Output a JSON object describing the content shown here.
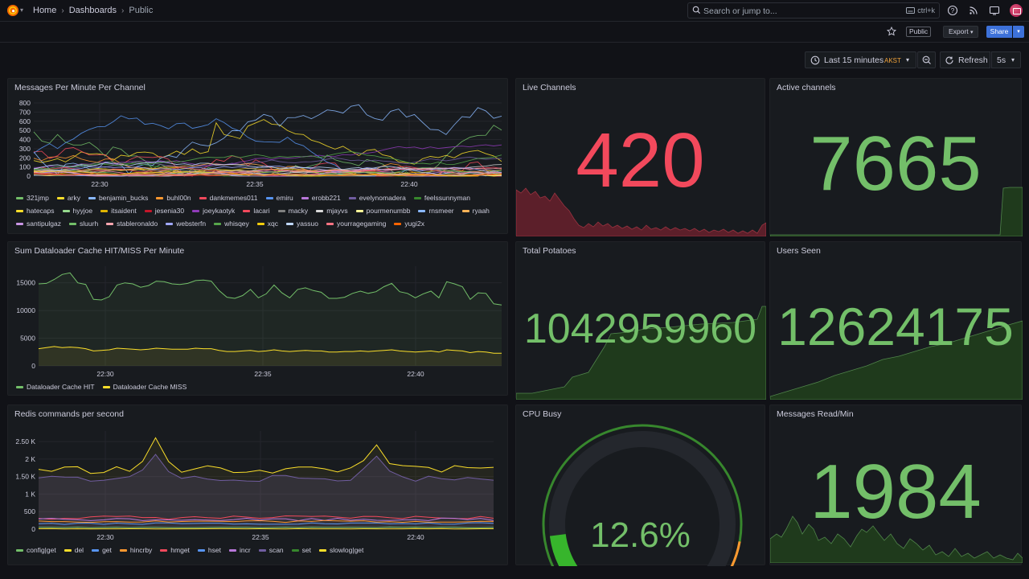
{
  "breadcrumbs": [
    "Home",
    "Dashboards",
    "Public"
  ],
  "search": {
    "placeholder": "Search or jump to...",
    "shortcut": "ctrl+k"
  },
  "toolbar": {
    "public_tag": "Public",
    "export_label": "Export",
    "share_label": "Share"
  },
  "time": {
    "range_label": "Last 15 minutes",
    "timezone": "AKST",
    "refresh_label": "Refresh",
    "interval": "5s"
  },
  "colors": {
    "green": "#73bf69",
    "red": "#f2495c",
    "yellow": "#fade2a",
    "blue": "#5794f2",
    "orange": "#ff9830",
    "purple": "#b877d9"
  },
  "panels": {
    "messages": {
      "title": "Messages Per Minute Per Channel",
      "chart_data": {
        "type": "line",
        "x_ticks": [
          "22:30",
          "22:35",
          "22:40"
        ],
        "y_ticks": [
          "0",
          "100",
          "200",
          "300",
          "400",
          "500",
          "600",
          "700",
          "800"
        ],
        "ylim": [
          0,
          800
        ],
        "legend": [
          "321jmp",
          "arky",
          "benjamin_bucks",
          "buhl00n",
          "dankmemes011",
          "emiru",
          "erobb221",
          "evelynomadera",
          "feelssunnyman",
          "hatecaps",
          "hyyjoe",
          "itsaident",
          "jesenia30",
          "joeykaotyk",
          "lacari",
          "macky",
          "mjayvs",
          "pourmenumbb",
          "rnsmeer",
          "ryaah",
          "santipulgaz",
          "sluurh",
          "stableronaldo",
          "websterfn",
          "whisqey",
          "xqc",
          "yassuo",
          "yourragegaming",
          "yugi2x"
        ],
        "legend_colors": [
          "#73bf69",
          "#fade2a",
          "#8ab8ff",
          "#ff9830",
          "#f2495c",
          "#5794f2",
          "#b877d9",
          "#705da0",
          "#37872d",
          "#fade2a",
          "#96d98d",
          "#e0b400",
          "#c4162a",
          "#8f3bb8",
          "#f2495c",
          "#808080",
          "#d9d9d9",
          "#fff899",
          "#8ab8ff",
          "#ffb357",
          "#ca95e5",
          "#73bf69",
          "#ffa6b0",
          "#a0a8ff",
          "#56a64b",
          "#f2cc0c",
          "#c0d8ff",
          "#ff7383",
          "#fa6400"
        ]
      }
    },
    "live": {
      "title": "Live Channels",
      "value": "420"
    },
    "active": {
      "title": "Active channels",
      "value": "7665"
    },
    "dataloader": {
      "title": "Sum Dataloader Cache HIT/MISS Per Minute",
      "chart_data": {
        "type": "area",
        "x_ticks": [
          "22:30",
          "22:35",
          "22:40"
        ],
        "y_ticks": [
          "0",
          "5000",
          "10000",
          "15000"
        ],
        "ylim": [
          0,
          18000
        ],
        "series": [
          {
            "name": "Dataloader Cache HIT",
            "color": "#73bf69",
            "values": [
              14800,
              14900,
              15600,
              16500,
              16800,
              15000,
              14700,
              12000,
              11900,
              12500,
              14600,
              15000,
              14800,
              14200,
              14500,
              15300,
              15200,
              14800,
              14700,
              14900,
              15400,
              15500,
              15300,
              13600,
              12400,
              12200,
              12700,
              13800,
              12300,
              13000,
              14600,
              13200,
              12300,
              13800,
              14100,
              13600,
              13300,
              12200,
              12200,
              12400,
              13100,
              13500,
              13100,
              13400,
              14300,
              14900,
              13400,
              13100,
              12300,
              13000,
              13500,
              12300,
              15200,
              14800,
              14300,
              12000,
              13200,
              13100,
              11200,
              11000
            ]
          },
          {
            "name": "Dataloader Cache MISS",
            "color": "#fade2a",
            "values": [
              3100,
              3300,
              3500,
              3300,
              3400,
              3300,
              3100,
              2700,
              2800,
              2900,
              3200,
              3100,
              3000,
              2900,
              3000,
              3200,
              3100,
              3000,
              3000,
              3000,
              3200,
              3100,
              3100,
              2800,
              2600,
              2600,
              2700,
              2800,
              2600,
              2700,
              2900,
              2700,
              2600,
              2700,
              2800,
              2700,
              2700,
              2500,
              2500,
              2600,
              2600,
              2700,
              2600,
              2700,
              2800,
              2900,
              2700,
              2600,
              2500,
              2600,
              2700,
              2500,
              2900,
              2800,
              2700,
              2400,
              2600,
              2500,
              2300,
              2300
            ]
          }
        ]
      }
    },
    "potatoes": {
      "title": "Total Potatoes",
      "value": "1042959960"
    },
    "users": {
      "title": "Users Seen",
      "value": "12624175"
    },
    "redis": {
      "title": "Redis commands per second",
      "chart_data": {
        "type": "area",
        "x_ticks": [
          "22:30",
          "22:35",
          "22:40"
        ],
        "y_ticks": [
          "0",
          "500",
          "1 K",
          "1.50 K",
          "2 K",
          "2.50 K"
        ],
        "ylim": [
          0,
          2800
        ],
        "series": [
          {
            "name": "config|get",
            "color": "#73bf69",
            "values": []
          },
          {
            "name": "del",
            "color": "#fade2a",
            "values": []
          },
          {
            "name": "get",
            "color": "#5794f2",
            "values": []
          },
          {
            "name": "hincrby",
            "color": "#ff9830",
            "values": []
          },
          {
            "name": "hmget",
            "color": "#f2495c",
            "values": []
          },
          {
            "name": "hset",
            "color": "#5794f2",
            "values": []
          },
          {
            "name": "incr",
            "color": "#b877d9",
            "values": []
          },
          {
            "name": "scan",
            "color": "#705da0",
            "values": []
          },
          {
            "name": "set",
            "color": "#37872d",
            "values": []
          },
          {
            "name": "slowlog|get",
            "color": "#fade2a",
            "values": []
          }
        ]
      }
    },
    "cpu": {
      "title": "CPU Busy",
      "value": "12.6%",
      "fraction": 0.126
    },
    "readmin": {
      "title": "Messages Read/Min",
      "value": "1984"
    }
  }
}
